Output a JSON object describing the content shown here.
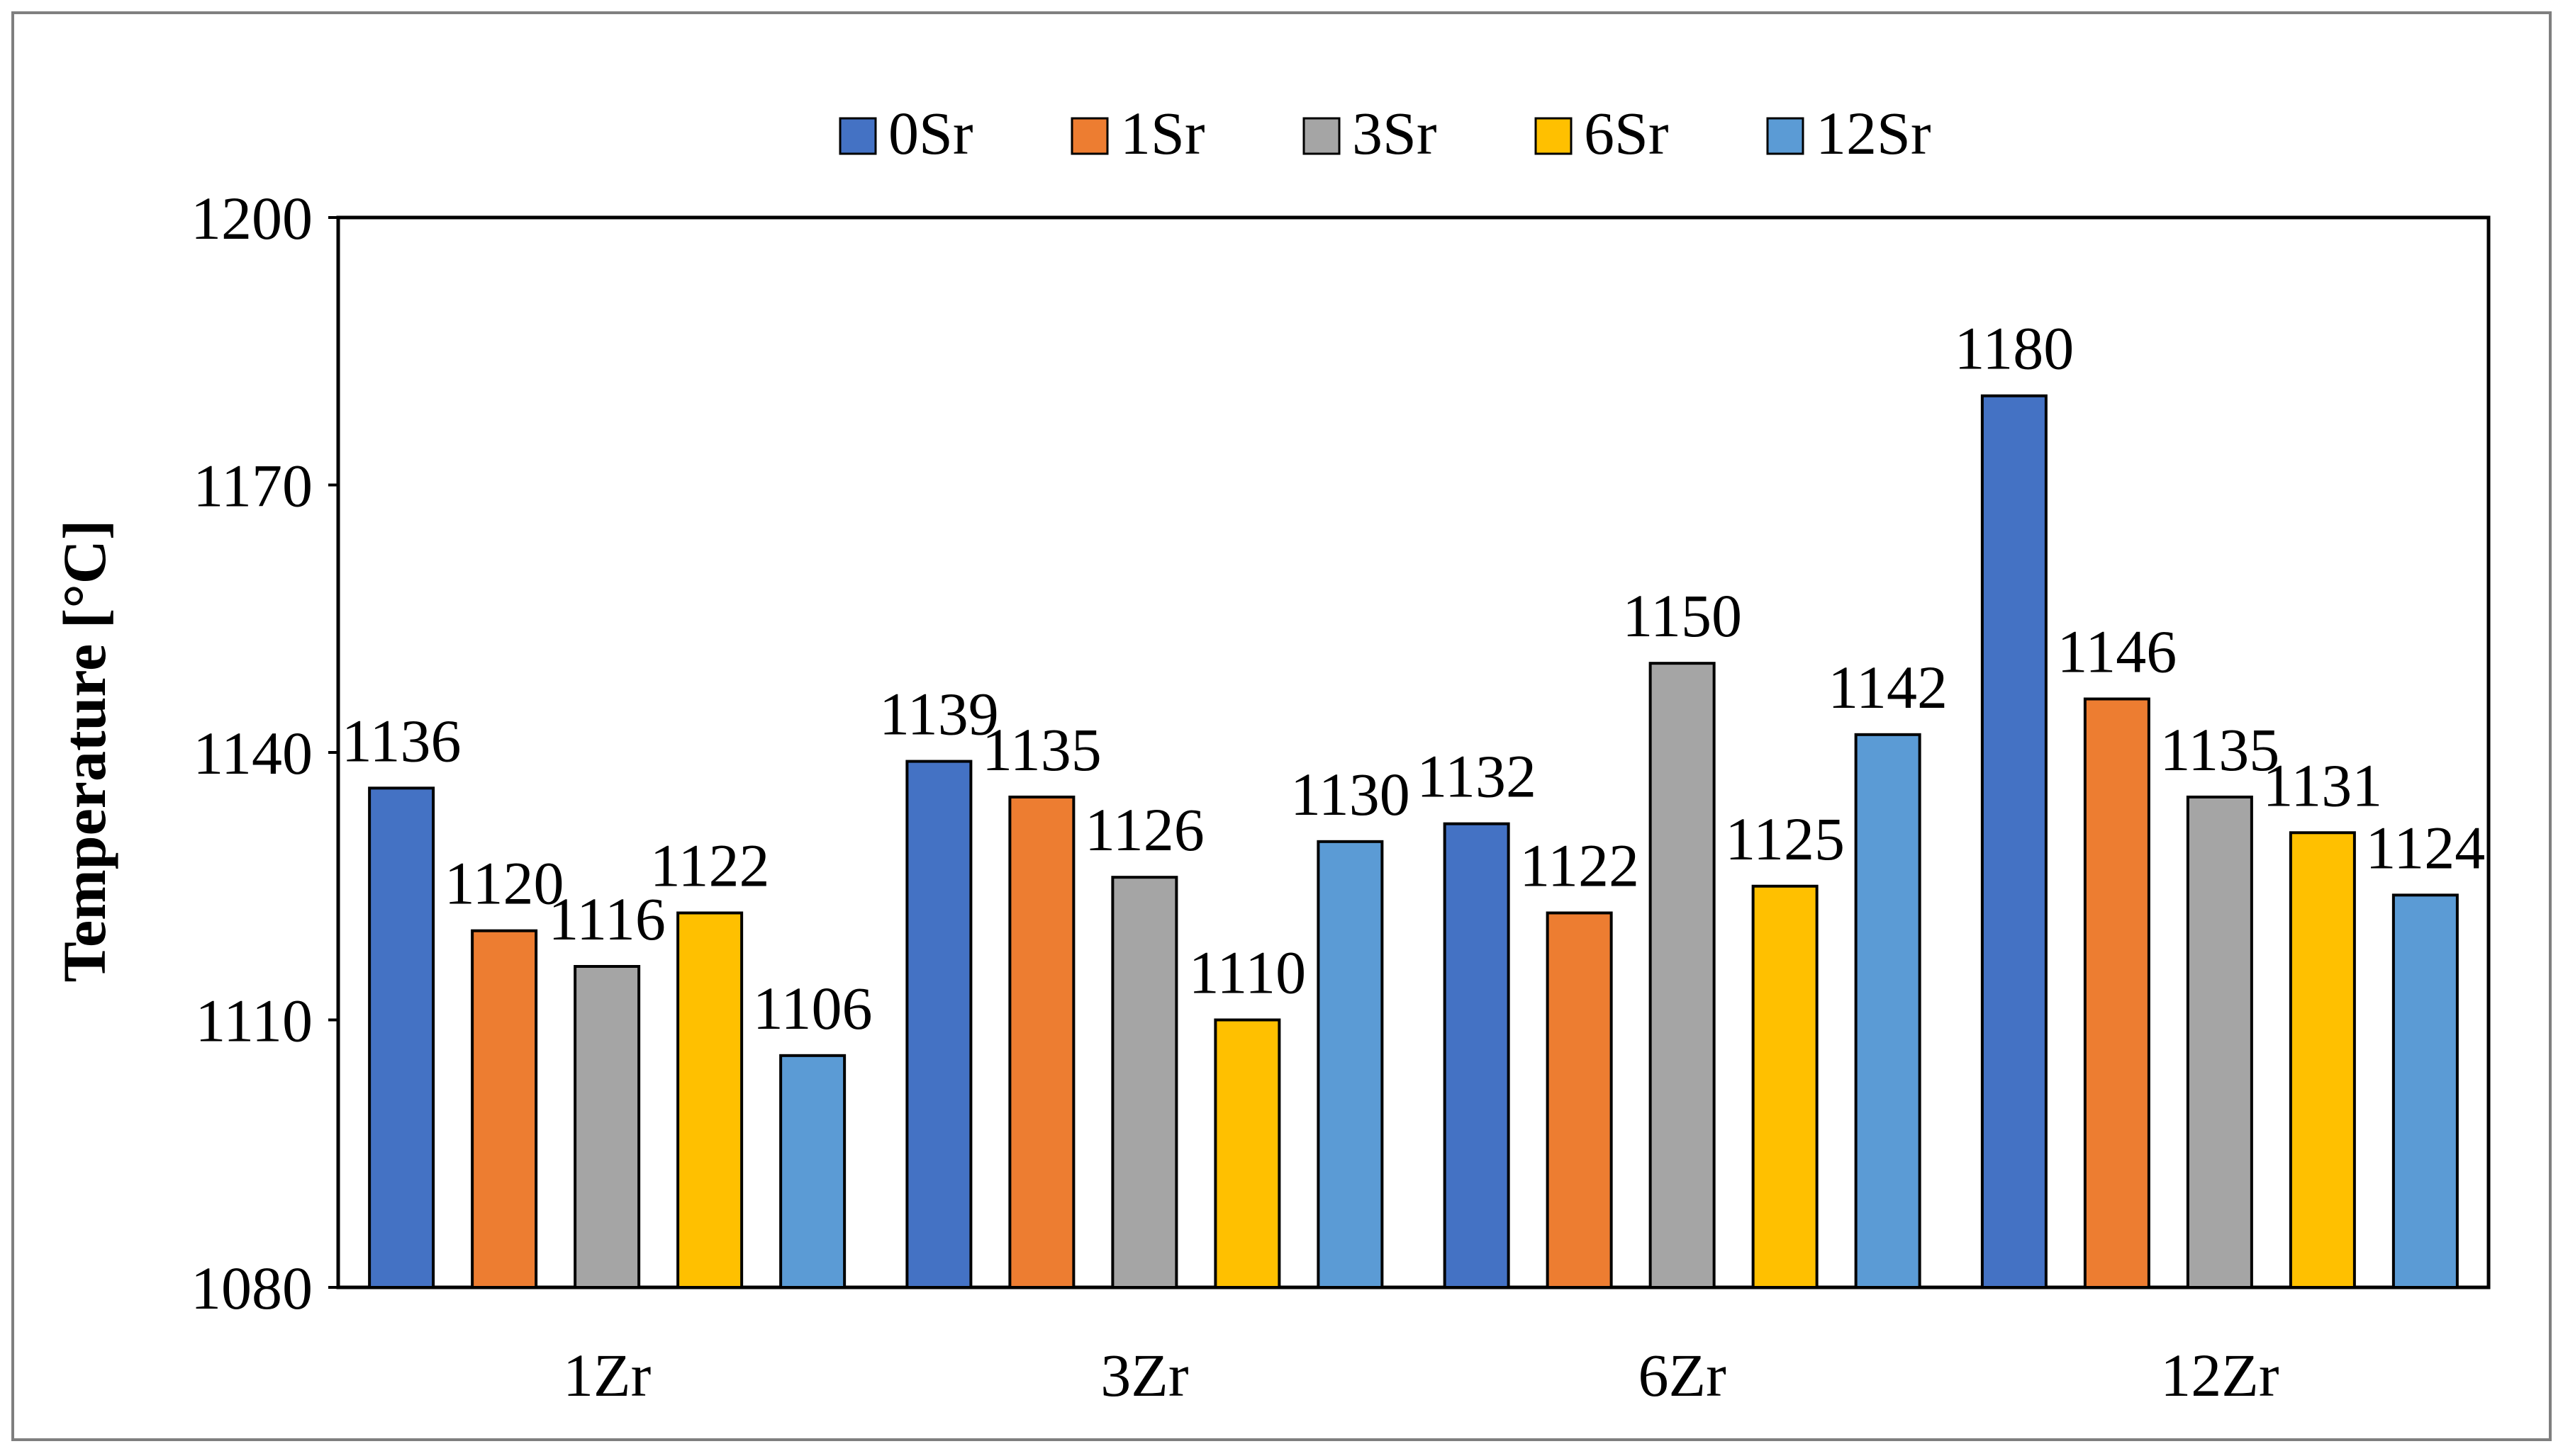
{
  "chart_data": {
    "type": "bar",
    "title": "",
    "xlabel": "",
    "ylabel": "Temperature [°C]",
    "ylim": [
      1080,
      1200
    ],
    "yticks": [
      1080,
      1110,
      1140,
      1170,
      1200
    ],
    "grid": false,
    "legend_position": "top",
    "categories": [
      "1Zr",
      "3Zr",
      "6Zr",
      "12Zr"
    ],
    "series": [
      {
        "name": "0Sr",
        "color": "#4472C4",
        "values": [
          1136,
          1139,
          1132,
          1180
        ]
      },
      {
        "name": "1Sr",
        "color": "#ED7D31",
        "values": [
          1120,
          1135,
          1122,
          1146
        ]
      },
      {
        "name": "3Sr",
        "color": "#A5A5A5",
        "values": [
          1116,
          1126,
          1150,
          1135
        ]
      },
      {
        "name": "6Sr",
        "color": "#FFC000",
        "values": [
          1122,
          1110,
          1125,
          1131
        ]
      },
      {
        "name": "12Sr",
        "color": "#5B9BD5",
        "values": [
          1106,
          1130,
          1142,
          1124
        ]
      }
    ]
  }
}
